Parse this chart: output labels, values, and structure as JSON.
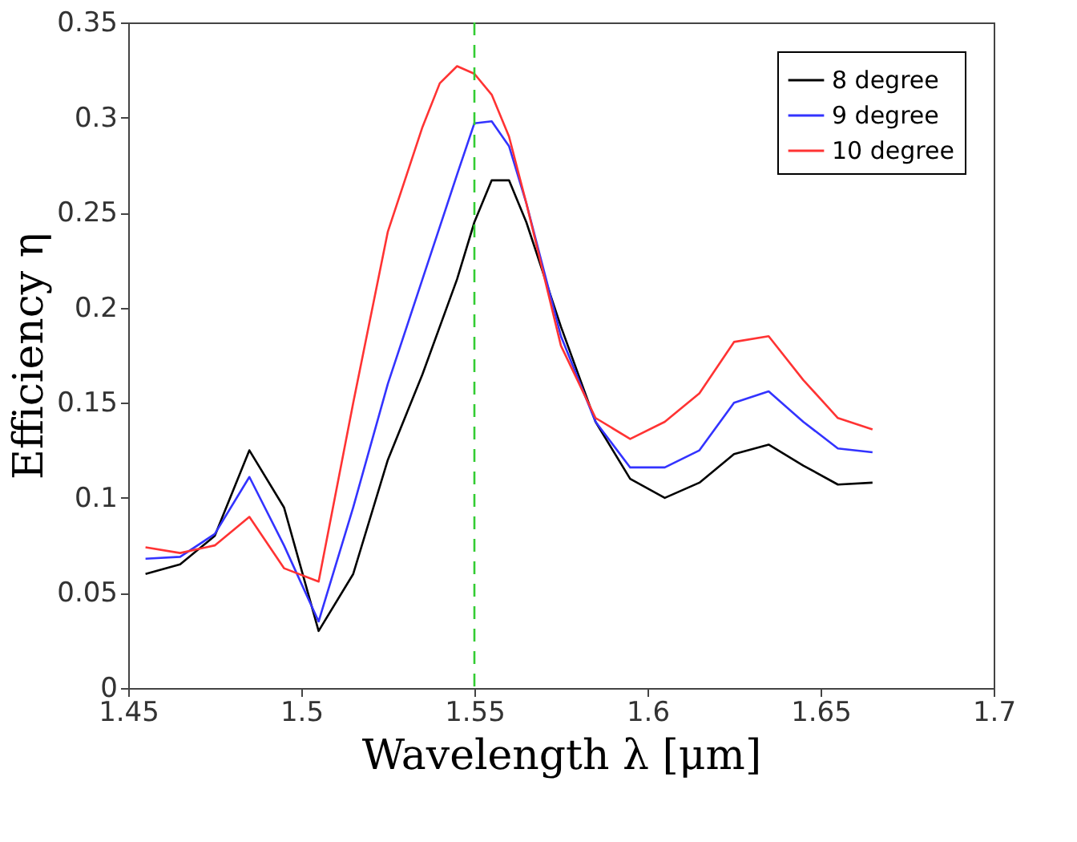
{
  "chart_data": {
    "type": "line",
    "xlabel": "Wavelength λ [μm]",
    "ylabel": "Efficiency η",
    "xlim": [
      1.45,
      1.7
    ],
    "xticks": [
      1.45,
      1.5,
      1.55,
      1.6,
      1.65,
      1.7
    ],
    "ylim": [
      0,
      0.35
    ],
    "yticks": [
      0,
      0.05,
      0.1,
      0.15,
      0.2,
      0.25,
      0.3,
      0.35
    ],
    "grid": false,
    "legend": "top right",
    "marker": "none",
    "line_style": "solid",
    "ref_lines": [
      {
        "axis": "x",
        "value": 1.55,
        "color": "#33cc33",
        "line_style": "dashed"
      }
    ],
    "series": [
      {
        "name": "8 degree",
        "color": "#000000",
        "x": [
          1.455,
          1.465,
          1.475,
          1.485,
          1.495,
          1.505,
          1.515,
          1.525,
          1.535,
          1.545,
          1.55,
          1.555,
          1.56,
          1.565,
          1.575,
          1.585,
          1.595,
          1.605,
          1.615,
          1.625,
          1.635,
          1.645,
          1.655,
          1.665
        ],
        "values": [
          0.06,
          0.065,
          0.08,
          0.125,
          0.095,
          0.03,
          0.06,
          0.12,
          0.165,
          0.215,
          0.245,
          0.267,
          0.267,
          0.245,
          0.19,
          0.14,
          0.11,
          0.1,
          0.108,
          0.123,
          0.128,
          0.117,
          0.107,
          0.108
        ]
      },
      {
        "name": "9 degree",
        "color": "#3333ff",
        "x": [
          1.455,
          1.465,
          1.475,
          1.485,
          1.495,
          1.505,
          1.515,
          1.525,
          1.535,
          1.545,
          1.55,
          1.555,
          1.56,
          1.565,
          1.575,
          1.585,
          1.595,
          1.605,
          1.615,
          1.625,
          1.635,
          1.645,
          1.655,
          1.665
        ],
        "values": [
          0.068,
          0.069,
          0.081,
          0.111,
          0.075,
          0.035,
          0.095,
          0.16,
          0.215,
          0.27,
          0.297,
          0.298,
          0.285,
          0.255,
          0.185,
          0.14,
          0.116,
          0.116,
          0.125,
          0.15,
          0.156,
          0.14,
          0.126,
          0.124
        ]
      },
      {
        "name": "10 degree",
        "color": "#ff3333",
        "x": [
          1.455,
          1.465,
          1.475,
          1.485,
          1.495,
          1.505,
          1.515,
          1.525,
          1.535,
          1.54,
          1.545,
          1.55,
          1.555,
          1.56,
          1.565,
          1.575,
          1.585,
          1.595,
          1.605,
          1.615,
          1.625,
          1.635,
          1.645,
          1.655,
          1.665
        ],
        "values": [
          0.074,
          0.071,
          0.075,
          0.09,
          0.063,
          0.056,
          0.15,
          0.24,
          0.295,
          0.318,
          0.327,
          0.323,
          0.312,
          0.29,
          0.255,
          0.18,
          0.142,
          0.131,
          0.14,
          0.155,
          0.182,
          0.185,
          0.162,
          0.142,
          0.136
        ]
      }
    ]
  }
}
